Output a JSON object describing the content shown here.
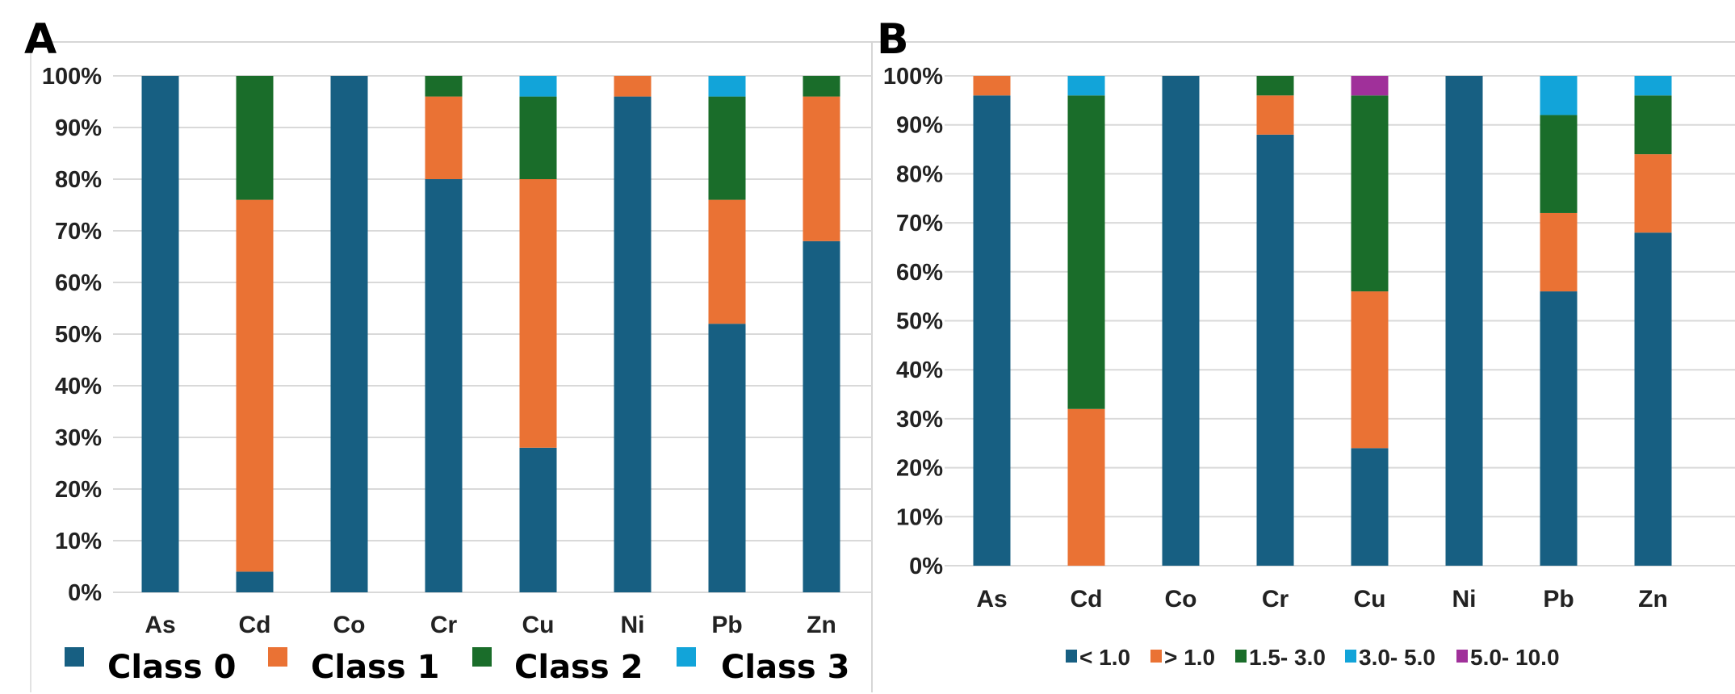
{
  "chart_data": [
    {
      "type": "bar",
      "stacked": true,
      "panel_label": "A",
      "categories": [
        "As",
        "Cd",
        "Co",
        "Cr",
        "Cu",
        "Ni",
        "Pb",
        "Zn"
      ],
      "series": [
        {
          "name": "Class 0",
          "color": "#175f82",
          "values": [
            100,
            4,
            100,
            80,
            28,
            96,
            52,
            68
          ]
        },
        {
          "name": "Class 1",
          "color": "#ea7234",
          "values": [
            0,
            72,
            0,
            16,
            52,
            4,
            24,
            28
          ]
        },
        {
          "name": "Class 2",
          "color": "#1a6d2a",
          "values": [
            0,
            24,
            0,
            4,
            16,
            0,
            20,
            4
          ]
        },
        {
          "name": "Class 3",
          "color": "#12a4d9",
          "values": [
            0,
            0,
            0,
            0,
            4,
            0,
            4,
            0
          ]
        }
      ],
      "yticks": [
        "0%",
        "10%",
        "20%",
        "30%",
        "40%",
        "50%",
        "60%",
        "70%",
        "80%",
        "90%",
        "100%"
      ],
      "ylim": [
        0,
        100
      ],
      "grid": true,
      "legend": "bottom"
    },
    {
      "type": "bar",
      "stacked": true,
      "panel_label": "B",
      "categories": [
        "As",
        "Cd",
        "Co",
        "Cr",
        "Cu",
        "Ni",
        "Pb",
        "Zn"
      ],
      "series": [
        {
          "name": "< 1.0",
          "color": "#175f82",
          "values": [
            96,
            0,
            100,
            88,
            24,
            100,
            56,
            68
          ]
        },
        {
          "name": "> 1.0",
          "color": "#ea7234",
          "values": [
            4,
            32,
            0,
            8,
            32,
            0,
            16,
            16
          ]
        },
        {
          "name": "1.5- 3.0",
          "color": "#1a6d2a",
          "values": [
            0,
            64,
            0,
            4,
            40,
            0,
            20,
            12
          ]
        },
        {
          "name": "3.0- 5.0",
          "color": "#12a4d9",
          "values": [
            0,
            4,
            0,
            0,
            0,
            0,
            8,
            4
          ]
        },
        {
          "name": "5.0- 10.0",
          "color": "#a0309a",
          "values": [
            0,
            0,
            0,
            0,
            4,
            0,
            0,
            0
          ]
        }
      ],
      "yticks": [
        "0%",
        "10%",
        "20%",
        "30%",
        "40%",
        "50%",
        "60%",
        "70%",
        "80%",
        "90%",
        "100%"
      ],
      "ylim": [
        0,
        100
      ],
      "grid": true,
      "legend": "bottom"
    }
  ]
}
